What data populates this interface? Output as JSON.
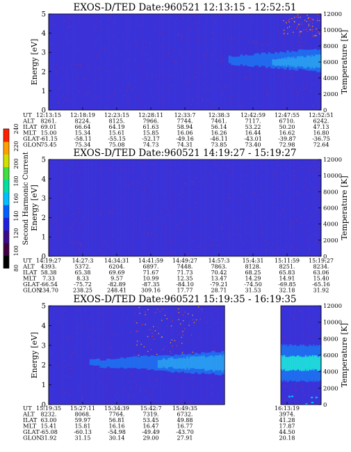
{
  "chart_data": {
    "type": "heatmap",
    "colorbar": {
      "label": "Second Harmonic Current",
      "ticks": [
        "80",
        "100",
        "120",
        "140",
        "160",
        "180",
        "200",
        "220",
        "240"
      ],
      "colors": [
        "#000000",
        "#400040",
        "#3a0a8c",
        "#2020e0",
        "#0060ff",
        "#00c0ff",
        "#00e0a0",
        "#40e040",
        "#d0e000",
        "#ffa000",
        "#ff2000"
      ]
    },
    "panels": [
      {
        "title": "EXOS-D/TED    Date:960521    12:13:15 - 12:52:51",
        "ylabel_left": "Energy [eV]",
        "ylabel_right": "Temperature [K]",
        "ylim": [
          0,
          5
        ],
        "y_ticks": [
          "0",
          "1",
          "2",
          "3",
          "4",
          "5"
        ],
        "right_ticks": [
          "0",
          "2000",
          "4000",
          "6000",
          "8000",
          "10000",
          "12000"
        ],
        "right_lim": [
          0,
          12000
        ],
        "background": "#3a32d8",
        "segments": [
          {
            "from": 0,
            "to": 1
          }
        ],
        "features": [
          {
            "kind": "band",
            "x_from": 0.66,
            "x_to": 1.0,
            "y_center": 2.6,
            "half_width_start": 0.2,
            "half_width_end": 0.6,
            "color": "#1f6ff0"
          },
          {
            "kind": "core",
            "x_from": 0.82,
            "x_to": 1.0,
            "y_center": 2.5,
            "half_width_start": 0.15,
            "half_width_end": 0.35,
            "color": "#2aa0f0"
          },
          {
            "kind": "sparkles",
            "x_from": 0.86,
            "x_to": 1.0,
            "y_from": 3.8,
            "y_to": 5.0
          }
        ],
        "table": {
          "labels": [
            "UT",
            "ALT",
            "ILAT",
            "MLT",
            "GLAT",
            "GLON"
          ],
          "columns": [
            [
              "12:13:15",
              "8261.",
              "69.01",
              "15.00",
              "-61.15",
              "75.45"
            ],
            [
              "12:18:19",
              "8224.",
              "66.64",
              "15.34",
              "-58.11",
              "75.34"
            ],
            [
              "12:23:15",
              "8125.",
              "64.19",
              "15.61",
              "-55.15",
              "75.08"
            ],
            [
              "12:28:11",
              "7966.",
              "61.63",
              "15.85",
              "-52.17",
              "74.73"
            ],
            [
              "12:33:7",
              "7744.",
              "58.94",
              "16.06",
              "-49.16",
              "74.31"
            ],
            [
              "12:38:3",
              "7461.",
              "56.14",
              "16.26",
              "-46.11",
              "73.85"
            ],
            [
              "12:42:59",
              "7117.",
              "53.22",
              "16.44",
              "-43.01",
              "73.40"
            ],
            [
              "12:47:55",
              "6710.",
              "50.20",
              "16.62",
              "-39.87",
              "72.98"
            ],
            [
              "12:52:51",
              "6242.",
              "47.13",
              "16.80",
              "-36.75",
              "72.64"
            ]
          ],
          "positions": [
            0,
            0.125,
            0.25,
            0.375,
            0.5,
            0.625,
            0.75,
            0.875,
            1.0
          ]
        }
      },
      {
        "title": "EXOS-D/TED    Date:960521    14:19:27 - 15:19:27",
        "ylabel_left": "Energy [eV]",
        "ylabel_right": "Temperature [K]",
        "ylim": [
          0,
          5
        ],
        "y_ticks": [
          "0",
          "1",
          "2",
          "3",
          "4",
          "5"
        ],
        "right_ticks": [
          "0",
          "2000",
          "4000",
          "6000",
          "8000",
          "10000",
          "12000"
        ],
        "right_lim": [
          0,
          12000
        ],
        "background": "#3a32d8",
        "segments": [
          {
            "from": 0,
            "to": 1
          }
        ],
        "features": [],
        "table": {
          "labels": [
            "UT",
            "ALT",
            "ILAT",
            "MLT",
            "GLAT",
            "GLON"
          ],
          "columns": [
            [
              "14:19:27",
              "4393.",
              "58.38",
              "7.33",
              "-66.54",
              "234.70"
            ],
            [
              "14:27:3",
              "5372.",
              "65.38",
              "8.33",
              "-75.72",
              "238.25"
            ],
            [
              "14:34:31",
              "6204.",
              "69.69",
              "9.57",
              "-82.89",
              "248.41"
            ],
            [
              "14:41:59",
              "6897.",
              "71.67",
              "10.99",
              "-87.35",
              "309.16"
            ],
            [
              "14:49:27",
              "7448.",
              "71.73",
              "12.35",
              "-84.10",
              "17.77"
            ],
            [
              "14:57:3",
              "7863.",
              "70.42",
              "13.47",
              "-79.21",
              "28.71"
            ],
            [
              "15:4:31",
              "8128.",
              "68.25",
              "14.29",
              "-74.50",
              "31.53"
            ],
            [
              "15:11:59",
              "8251.",
              "65.83",
              "14.91",
              "-69.85",
              "32.18"
            ],
            [
              "15:19:27",
              "8234.",
              "63.06",
              "15.40",
              "-65.16",
              "31.92"
            ]
          ],
          "positions": [
            0,
            0.125,
            0.25,
            0.375,
            0.5,
            0.625,
            0.75,
            0.875,
            1.0
          ]
        }
      },
      {
        "title": "EXOS-D/TED    Date:960521    15:19:35 - 16:19:35",
        "ylabel_left": "Energy [eV]",
        "ylabel_right": "Temperature [K]",
        "ylim": [
          0,
          5
        ],
        "y_ticks": [
          "0",
          "1",
          "2",
          "3",
          "4",
          "5"
        ],
        "right_ticks": [
          "0",
          "2000",
          "4000",
          "6000",
          "8000",
          "10000",
          "12000"
        ],
        "right_lim": [
          0,
          12000
        ],
        "background": "#3a32d8",
        "segments": [
          {
            "from": 0,
            "to": 0.646
          },
          {
            "from": 0.852,
            "to": 1.0
          }
        ],
        "features": [
          {
            "kind": "band",
            "x_from": 0.15,
            "x_to": 0.646,
            "y_center": 2.1,
            "half_width_start": 0.15,
            "half_width_end": 0.6,
            "color": "#1f6ff0"
          },
          {
            "kind": "core",
            "x_from": 0.4,
            "x_to": 0.646,
            "y_center": 2.1,
            "half_width_start": 0.2,
            "half_width_end": 0.4,
            "color": "#2aa0f0"
          },
          {
            "kind": "band",
            "x_from": 0.852,
            "x_to": 1.0,
            "y_center": 2.1,
            "half_width_start": 0.9,
            "half_width_end": 0.9,
            "color": "#1f6ff0"
          },
          {
            "kind": "core",
            "x_from": 0.852,
            "x_to": 1.0,
            "y_center": 2.1,
            "half_width_start": 0.35,
            "half_width_end": 0.35,
            "color": "#20e0d8"
          },
          {
            "kind": "sparkles",
            "x_from": 0.32,
            "x_to": 0.56,
            "y_from": 2.5,
            "y_to": 5.0
          },
          {
            "kind": "dots",
            "x_from": 0.852,
            "x_to": 1.0,
            "y_from": 0.05,
            "y_to": 0.5
          }
        ],
        "table": {
          "labels": [
            "UT",
            "ALT",
            "ILAT",
            "MLT",
            "GLAT",
            "GLON"
          ],
          "columns": [
            [
              "15:19:35",
              "8232.",
              "63.00",
              "15.41",
              "-65.08",
              "31.92"
            ],
            [
              "15:27:11",
              "8068.",
              "59.97",
              "15.81",
              "-60.13",
              "31.15"
            ],
            [
              "15:34:39",
              "7764.",
              "56.81",
              "16.16",
              "-54.98",
              "30.14"
            ],
            [
              "15:42:7",
              "7319.",
              "53.45",
              "16.47",
              "-49.49",
              "29.00"
            ],
            [
              "15:49:35",
              "6732.",
              "49.88",
              "16.77",
              "-43.70",
              "27.91"
            ],
            [
              "16:13:19",
              "3974.",
              "41.28",
              "17.87",
              "44.50",
              "20.18"
            ]
          ],
          "positions": [
            0,
            0.125,
            0.25,
            0.375,
            0.5,
            0.875
          ]
        }
      }
    ]
  }
}
